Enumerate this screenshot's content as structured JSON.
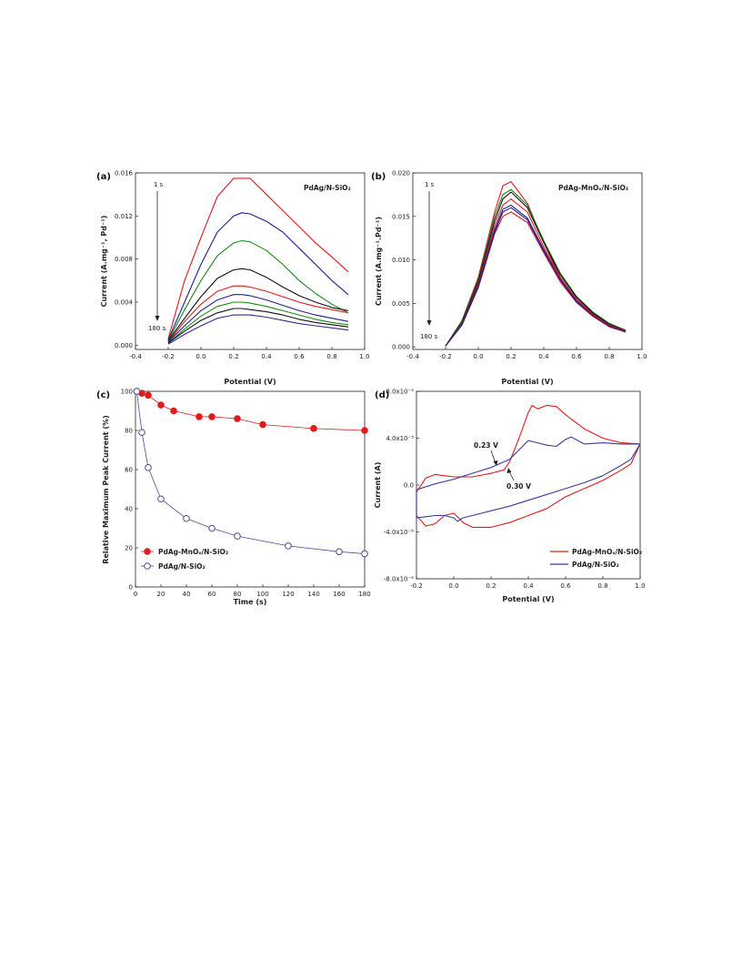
{
  "chart_data": [
    {
      "panel_label": "(a)",
      "type": "line",
      "title": "PdAg/N-SiO₂",
      "xlabel": "Potential (V)",
      "ylabel": "Current (A.mg⁻¹, Pd⁻¹)",
      "xlim": [
        -0.4,
        1.0
      ],
      "ylim": [
        -0.0004,
        0.016
      ],
      "xticks": [
        "-0.4",
        "-0.2",
        "0.0",
        "0.2",
        "0.4",
        "0.6",
        "0.8",
        "1.0"
      ],
      "yticks": [
        "0.000",
        "0.004",
        "0.008",
        "0.012",
        "0.016"
      ],
      "annotation_top": "1 s",
      "annotation_bottom": "180 s",
      "colors": [
        "#e31a1c",
        "#1f1f8f",
        "#1a8a1a",
        "#111111",
        "#e31a1c",
        "#1f1f8f",
        "#1a8a1a",
        "#111111",
        "#3a2a8a"
      ],
      "series": [
        {
          "x": [
            -0.2,
            -0.1,
            0.0,
            0.1,
            0.2,
            0.25,
            0.3,
            0.4,
            0.5,
            0.6,
            0.7,
            0.8,
            0.9
          ],
          "values": [
            0.0006,
            0.006,
            0.01,
            0.0138,
            0.0155,
            0.0155,
            0.0155,
            0.014,
            0.0125,
            0.011,
            0.0095,
            0.0082,
            0.0068
          ]
        },
        {
          "x": [
            -0.2,
            -0.1,
            0.0,
            0.1,
            0.2,
            0.25,
            0.3,
            0.4,
            0.5,
            0.6,
            0.7,
            0.8,
            0.9
          ],
          "values": [
            0.0005,
            0.004,
            0.0075,
            0.0105,
            0.012,
            0.0123,
            0.0122,
            0.0115,
            0.0105,
            0.009,
            0.0075,
            0.006,
            0.0047
          ]
        },
        {
          "x": [
            -0.2,
            -0.1,
            0.0,
            0.1,
            0.2,
            0.25,
            0.3,
            0.4,
            0.5,
            0.6,
            0.7,
            0.8,
            0.9
          ],
          "values": [
            0.0004,
            0.0033,
            0.006,
            0.0083,
            0.0095,
            0.0097,
            0.0096,
            0.0088,
            0.0075,
            0.006,
            0.0048,
            0.0038,
            0.003
          ]
        },
        {
          "x": [
            -0.2,
            -0.1,
            0.0,
            0.1,
            0.2,
            0.25,
            0.3,
            0.4,
            0.5,
            0.6,
            0.7,
            0.8,
            0.9
          ],
          "values": [
            0.0004,
            0.0025,
            0.0045,
            0.0062,
            0.007,
            0.0071,
            0.007,
            0.0063,
            0.0054,
            0.0046,
            0.004,
            0.0035,
            0.0032
          ]
        },
        {
          "x": [
            -0.2,
            -0.1,
            0.0,
            0.1,
            0.2,
            0.25,
            0.3,
            0.4,
            0.5,
            0.6,
            0.7,
            0.8,
            0.9
          ],
          "values": [
            0.0003,
            0.0022,
            0.0038,
            0.005,
            0.0055,
            0.0055,
            0.0054,
            0.005,
            0.0045,
            0.004,
            0.0036,
            0.0033,
            0.003
          ]
        },
        {
          "x": [
            -0.2,
            -0.1,
            0.0,
            0.1,
            0.2,
            0.25,
            0.3,
            0.4,
            0.5,
            0.6,
            0.7,
            0.8,
            0.9
          ],
          "values": [
            0.0003,
            0.0018,
            0.0032,
            0.0042,
            0.0047,
            0.0047,
            0.0046,
            0.0042,
            0.0037,
            0.0032,
            0.0028,
            0.0025,
            0.0022
          ]
        },
        {
          "x": [
            -0.2,
            -0.1,
            0.0,
            0.1,
            0.2,
            0.25,
            0.3,
            0.4,
            0.5,
            0.6,
            0.7,
            0.8,
            0.9
          ],
          "values": [
            0.0002,
            0.0015,
            0.0027,
            0.0036,
            0.004,
            0.004,
            0.0039,
            0.0036,
            0.0032,
            0.0028,
            0.0024,
            0.0021,
            0.0019
          ]
        },
        {
          "x": [
            -0.2,
            -0.1,
            0.0,
            0.1,
            0.2,
            0.25,
            0.3,
            0.4,
            0.5,
            0.6,
            0.7,
            0.8,
            0.9
          ],
          "values": [
            0.0002,
            0.0013,
            0.0023,
            0.003,
            0.0034,
            0.0034,
            0.0033,
            0.0031,
            0.0028,
            0.0024,
            0.0021,
            0.0019,
            0.0017
          ]
        },
        {
          "x": [
            -0.2,
            -0.1,
            0.0,
            0.1,
            0.2,
            0.25,
            0.3,
            0.4,
            0.5,
            0.6,
            0.7,
            0.8,
            0.9
          ],
          "values": [
            0.0001,
            0.001,
            0.0018,
            0.0025,
            0.0028,
            0.0028,
            0.0028,
            0.0026,
            0.0023,
            0.002,
            0.0018,
            0.0016,
            0.0014
          ]
        }
      ]
    },
    {
      "panel_label": "(b)",
      "type": "line",
      "title": "PdAg-MnOₓ/N-SiO₂",
      "xlabel": "Potential (V)",
      "ylabel": "Current (A.mg⁻¹.Pd⁻¹)",
      "xlim": [
        -0.4,
        1.0
      ],
      "ylim": [
        -0.0003,
        0.02
      ],
      "xticks": [
        "-0.4",
        "-0.2",
        "0.0",
        "0.2",
        "0.4",
        "0.6",
        "0.8",
        "1.0"
      ],
      "yticks": [
        "0.000",
        "0.005",
        "0.010",
        "0.015",
        "0.020"
      ],
      "annotation_top": "1 s",
      "annotation_bottom": "180 s",
      "colors": [
        "#e31a1c",
        "#1a7a1a",
        "#111111",
        "#e31a1c",
        "#1f1f8f",
        "#e31a1c",
        "#1f1f8f"
      ],
      "series": [
        {
          "x": [
            -0.2,
            -0.1,
            0.0,
            0.1,
            0.15,
            0.2,
            0.3,
            0.4,
            0.5,
            0.6,
            0.7,
            0.8,
            0.9
          ],
          "values": [
            0.0001,
            0.003,
            0.008,
            0.0155,
            0.0185,
            0.019,
            0.0165,
            0.012,
            0.008,
            0.0055,
            0.0038,
            0.0025,
            0.0018
          ]
        },
        {
          "x": [
            -0.2,
            -0.1,
            0.0,
            0.1,
            0.15,
            0.2,
            0.3,
            0.4,
            0.5,
            0.6,
            0.7,
            0.8,
            0.9
          ],
          "values": [
            0.0001,
            0.003,
            0.0078,
            0.015,
            0.0175,
            0.0181,
            0.0163,
            0.0122,
            0.0085,
            0.0058,
            0.004,
            0.0027,
            0.0019
          ]
        },
        {
          "x": [
            -0.2,
            -0.1,
            0.0,
            0.1,
            0.15,
            0.2,
            0.3,
            0.4,
            0.5,
            0.6,
            0.7,
            0.8,
            0.9
          ],
          "values": [
            0.0001,
            0.0028,
            0.0075,
            0.0145,
            0.017,
            0.0178,
            0.016,
            0.012,
            0.0083,
            0.0057,
            0.0039,
            0.0026,
            0.0019
          ]
        },
        {
          "x": [
            -0.2,
            -0.1,
            0.0,
            0.1,
            0.15,
            0.2,
            0.3,
            0.4,
            0.5,
            0.6,
            0.7,
            0.8,
            0.9
          ],
          "values": [
            0.0001,
            0.0027,
            0.0072,
            0.014,
            0.0163,
            0.017,
            0.0155,
            0.0115,
            0.008,
            0.0055,
            0.0037,
            0.0025,
            0.0018
          ]
        },
        {
          "x": [
            -0.2,
            -0.1,
            0.0,
            0.1,
            0.15,
            0.2,
            0.3,
            0.4,
            0.5,
            0.6,
            0.7,
            0.8,
            0.9
          ],
          "values": [
            0.0001,
            0.0026,
            0.007,
            0.0135,
            0.0158,
            0.0163,
            0.0148,
            0.0112,
            0.0078,
            0.0053,
            0.0036,
            0.0024,
            0.0017
          ]
        },
        {
          "x": [
            -0.2,
            -0.1,
            0.0,
            0.1,
            0.15,
            0.2,
            0.3,
            0.4,
            0.5,
            0.6,
            0.7,
            0.8,
            0.9
          ],
          "values": [
            0.0001,
            0.0025,
            0.0068,
            0.013,
            0.015,
            0.0155,
            0.0143,
            0.0108,
            0.0075,
            0.0051,
            0.0035,
            0.0023,
            0.0017
          ]
        },
        {
          "x": [
            -0.2,
            -0.1,
            0.0,
            0.1,
            0.15,
            0.2,
            0.3,
            0.4,
            0.5,
            0.6,
            0.7,
            0.8,
            0.9
          ],
          "values": [
            0.0001,
            0.0025,
            0.0069,
            0.0132,
            0.0155,
            0.016,
            0.0146,
            0.011,
            0.0077,
            0.0052,
            0.0036,
            0.0024,
            0.0017
          ]
        }
      ]
    },
    {
      "panel_label": "(c)",
      "type": "line",
      "xlabel": "Time (s)",
      "ylabel": "Relative Maximum Peak Current (%)",
      "xlim": [
        0,
        180
      ],
      "ylim": [
        0,
        100
      ],
      "xticks": [
        "0",
        "20",
        "40",
        "60",
        "80",
        "100",
        "120",
        "140",
        "160",
        "180"
      ],
      "yticks": [
        "0",
        "20",
        "40",
        "60",
        "80",
        "100"
      ],
      "legend_position": "bottom-left",
      "series": [
        {
          "name": "PdAg-MnOₓ/N-SiO₂",
          "color": "#e31a1c",
          "filled": true,
          "x": [
            1,
            5,
            10,
            20,
            30,
            50,
            60,
            80,
            100,
            140,
            180
          ],
          "values": [
            100,
            99,
            98,
            93,
            90,
            87,
            87,
            86,
            83,
            81,
            80
          ]
        },
        {
          "name": "PdAg/N-SiO₂",
          "color": "#4a4a9a",
          "filled": false,
          "x": [
            1,
            5,
            10,
            20,
            40,
            60,
            80,
            120,
            160,
            180
          ],
          "values": [
            100,
            79,
            61,
            45,
            35,
            30,
            26,
            21,
            18,
            17
          ]
        }
      ]
    },
    {
      "panel_label": "(d)",
      "type": "line",
      "xlabel": "Potential (V)",
      "ylabel": "Current (A)",
      "xlim": [
        -0.2,
        1.0
      ],
      "ylim": [
        -8e-05,
        8e-05
      ],
      "xticks": [
        "-0.2",
        "0.0",
        "0.2",
        "0.4",
        "0.6",
        "0.8",
        "1.0"
      ],
      "yticks": [
        "-8.0x10⁻⁵",
        "-4.0x10⁻⁵",
        "0.0",
        "4.0x10⁻⁵",
        "8.0x10⁻⁵"
      ],
      "legend_position": "bottom-right",
      "annotations": [
        {
          "text": "0.23 V",
          "x": 0.23,
          "y": 1.2e-05
        },
        {
          "text": "0.30 V",
          "x": 0.3,
          "y": 1.2e-05
        }
      ],
      "series": [
        {
          "name": "PdAg-MnOₓ/N-SiO₂",
          "color": "#e31a1c",
          "x": [
            -0.2,
            -0.15,
            -0.1,
            -0.05,
            0.0,
            0.1,
            0.2,
            0.27,
            0.3,
            0.35,
            0.4,
            0.42,
            0.45,
            0.5,
            0.55,
            0.6,
            0.7,
            0.8,
            0.9,
            1.0,
            0.95,
            0.9,
            0.8,
            0.7,
            0.6,
            0.5,
            0.4,
            0.3,
            0.2,
            0.1,
            0.05,
            0.0,
            -0.05,
            -0.1,
            -0.15,
            -0.2
          ],
          "values": [
            -6e-06,
            6e-06,
            9e-06,
            8e-06,
            7e-06,
            7e-06,
            1e-05,
            1.3e-05,
            2e-05,
            4e-05,
            6.2e-05,
            6.8e-05,
            6.5e-05,
            6.8e-05,
            6.7e-05,
            6e-05,
            4.8e-05,
            4e-05,
            3.6e-05,
            3.5e-05,
            1.8e-05,
            1.3e-05,
            4e-06,
            -3e-06,
            -1e-05,
            -2e-05,
            -2.6e-05,
            -3.2e-05,
            -3.6e-05,
            -3.6e-05,
            -3.2e-05,
            -2.4e-05,
            -2.6e-05,
            -3.3e-05,
            -3.5e-05,
            -2.6e-05
          ]
        },
        {
          "name": "PdAg/N-SiO₂",
          "color": "#3a3aa0",
          "x": [
            -0.2,
            -0.1,
            0.0,
            0.1,
            0.2,
            0.3,
            0.35,
            0.4,
            0.45,
            0.5,
            0.55,
            0.6,
            0.63,
            0.7,
            0.8,
            0.9,
            1.0,
            0.95,
            0.9,
            0.8,
            0.7,
            0.6,
            0.5,
            0.4,
            0.3,
            0.2,
            0.1,
            0.05,
            0.02,
            0.0,
            -0.05,
            -0.1,
            -0.15,
            -0.2
          ],
          "values": [
            -4e-06,
            1e-06,
            5e-06,
            1e-05,
            1.5e-05,
            2.2e-05,
            3e-05,
            3.8e-05,
            3.6e-05,
            3.4e-05,
            3.3e-05,
            3.9e-05,
            4.1e-05,
            3.5e-05,
            3.6e-05,
            3.5e-05,
            3.5e-05,
            2.2e-05,
            1.7e-05,
            8e-06,
            2e-06,
            -3e-06,
            -8e-06,
            -1.3e-05,
            -1.8e-05,
            -2.2e-05,
            -2.6e-05,
            -2.8e-05,
            -3.1e-05,
            -2.8e-05,
            -2.6e-05,
            -2.6e-05,
            -2.7e-05,
            -2.8e-05
          ]
        }
      ]
    }
  ]
}
